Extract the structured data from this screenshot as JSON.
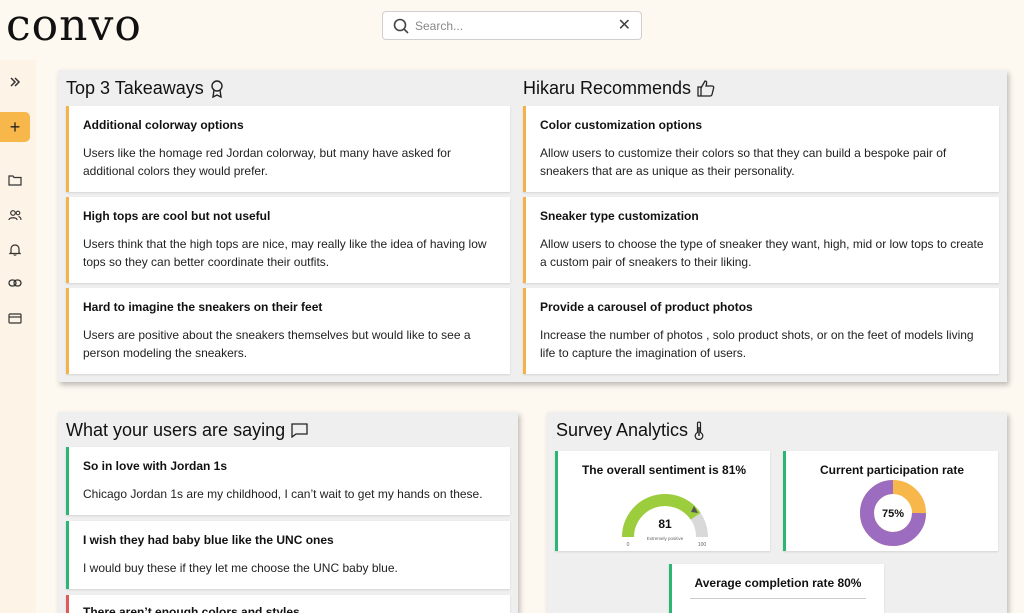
{
  "header": {
    "logo": "convo",
    "search_placeholder": "Search..."
  },
  "sidebar": {
    "icons": [
      "expand-icon",
      "folder-icon",
      "users-icon",
      "bell-icon",
      "link-icon",
      "card-icon"
    ]
  },
  "takeaways": {
    "title": "Top 3 Takeaways",
    "items": [
      {
        "title": "Additional colorway options",
        "text": "Users like the homage red Jordan colorway, but many have asked for additional colors they would prefer."
      },
      {
        "title": "High tops are cool but not useful",
        "text": "Users think that the high tops are nice, may really like the idea of having low tops so they can better coordinate their outfits."
      },
      {
        "title": "Hard to imagine the sneakers on their feet",
        "text": "Users are positive about the sneakers themselves but would like to see a person modeling the sneakers."
      }
    ]
  },
  "recommends": {
    "title": "Hikaru Recommends",
    "items": [
      {
        "title": "Color customization options",
        "text": "Allow users to customize their colors so that they can build a bespoke pair of sneakers that are as unique as their personality."
      },
      {
        "title": "Sneaker type customization",
        "text": "Allow users to choose the type of sneaker they want, high, mid or low tops to create a custom pair of sneakers to their liking."
      },
      {
        "title": "Provide a carousel of product photos",
        "text": "Increase the number of photos , solo product shots, or on the feet of models living life to capture the imagination of users."
      }
    ]
  },
  "users_saying": {
    "title": "What your users are saying",
    "items": [
      {
        "title": "So in love with Jordan 1s",
        "text": "Chicago Jordan 1s are my childhood, I can’t wait to get my hands on these."
      },
      {
        "title": "I wish they had baby blue like the UNC ones",
        "text": "I would buy these if they let me choose the UNC baby blue."
      },
      {
        "title": "There aren’t enough colors and styles",
        "text": ""
      }
    ]
  },
  "analytics": {
    "title": "Survey Analytics",
    "sentiment": {
      "title": "The overall sentiment is 81%",
      "value": 81,
      "value_label": "81",
      "min_label": "0",
      "max_label": "100",
      "caption": "Extremely positive"
    },
    "participation": {
      "title": "Current participation rate",
      "value": 75,
      "value_label": "75%",
      "fill_color": "#9b6cc0",
      "rest_color": "#f7b74a"
    },
    "completion": {
      "title": "Average completion rate 80%"
    }
  },
  "colors": {
    "accent": "#f7b74a",
    "positive": "#2bb673",
    "panel": "#efefef"
  }
}
